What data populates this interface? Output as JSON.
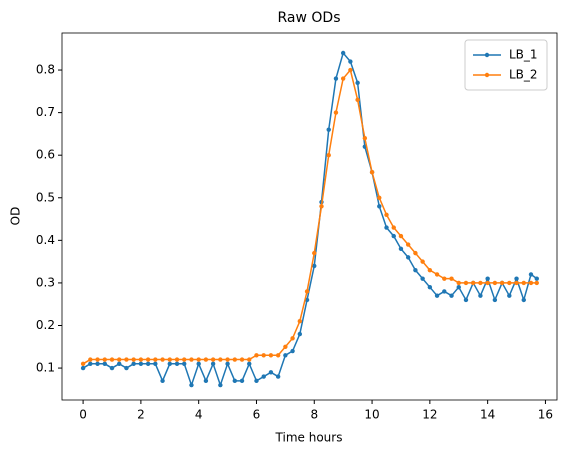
{
  "chart_data": {
    "type": "line",
    "title": "Raw ODs",
    "x_label": "Time hours",
    "y_label": "OD",
    "x": [
      0,
      0.25,
      0.5,
      0.75,
      1,
      1.25,
      1.5,
      1.75,
      2,
      2.25,
      2.5,
      2.75,
      3,
      3.25,
      3.5,
      3.75,
      4,
      4.25,
      4.5,
      4.75,
      5,
      5.25,
      5.5,
      5.75,
      6,
      6.25,
      6.5,
      6.75,
      7,
      7.25,
      7.5,
      7.75,
      8,
      8.25,
      8.5,
      8.75,
      9,
      9.25,
      9.5,
      9.75,
      10,
      10.25,
      10.5,
      10.75,
      11,
      11.25,
      11.5,
      11.75,
      12,
      12.25,
      12.5,
      12.75,
      13,
      13.25,
      13.5,
      13.75,
      14,
      14.25,
      14.5,
      14.75,
      15,
      15.25,
      15.5,
      15.7
    ],
    "series": [
      {
        "name": "LB_1",
        "color": "#1f77b4",
        "values": [
          0.1,
          0.11,
          0.11,
          0.11,
          0.1,
          0.11,
          0.1,
          0.11,
          0.11,
          0.11,
          0.11,
          0.07,
          0.11,
          0.11,
          0.11,
          0.06,
          0.11,
          0.07,
          0.11,
          0.06,
          0.11,
          0.07,
          0.07,
          0.11,
          0.07,
          0.08,
          0.09,
          0.08,
          0.13,
          0.14,
          0.18,
          0.26,
          0.34,
          0.49,
          0.66,
          0.78,
          0.84,
          0.82,
          0.77,
          0.62,
          0.56,
          0.48,
          0.43,
          0.41,
          0.38,
          0.36,
          0.33,
          0.31,
          0.29,
          0.27,
          0.28,
          0.27,
          0.29,
          0.26,
          0.3,
          0.27,
          0.31,
          0.26,
          0.3,
          0.27,
          0.31,
          0.26,
          0.32,
          0.31
        ]
      },
      {
        "name": "LB_2",
        "color": "#ff7f0e",
        "values": [
          0.11,
          0.12,
          0.12,
          0.12,
          0.12,
          0.12,
          0.12,
          0.12,
          0.12,
          0.12,
          0.12,
          0.12,
          0.12,
          0.12,
          0.12,
          0.12,
          0.12,
          0.12,
          0.12,
          0.12,
          0.12,
          0.12,
          0.12,
          0.12,
          0.13,
          0.13,
          0.13,
          0.13,
          0.15,
          0.17,
          0.21,
          0.28,
          0.37,
          0.48,
          0.6,
          0.7,
          0.78,
          0.8,
          0.73,
          0.64,
          0.56,
          0.5,
          0.46,
          0.43,
          0.41,
          0.39,
          0.37,
          0.35,
          0.33,
          0.32,
          0.31,
          0.31,
          0.3,
          0.3,
          0.3,
          0.3,
          0.3,
          0.3,
          0.3,
          0.3,
          0.3,
          0.3,
          0.3,
          0.3
        ]
      }
    ],
    "xlim": [
      -0.73,
      16.4
    ],
    "xticks": [
      0,
      2,
      4,
      6,
      8,
      10,
      12,
      14,
      16
    ],
    "ylim": [
      0.025,
      0.887
    ],
    "yticks": [
      0.1,
      0.2,
      0.3,
      0.4,
      0.5,
      0.6,
      0.7,
      0.8
    ],
    "legend": "upper right"
  }
}
